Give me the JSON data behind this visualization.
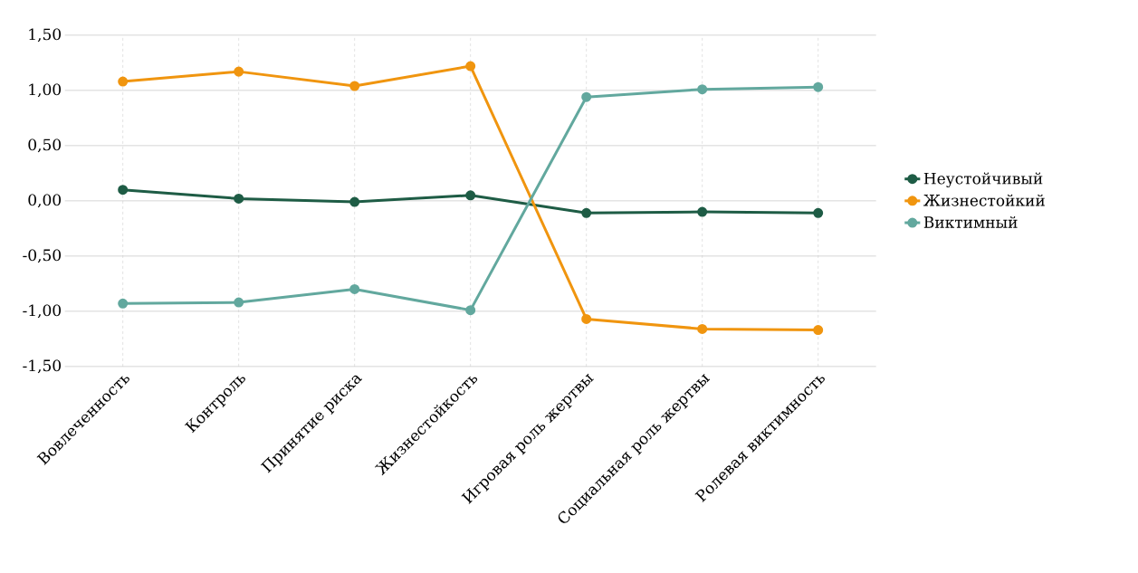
{
  "chart_data": {
    "type": "line",
    "categories": [
      "Вовлеченность",
      "Контроль",
      "Принятие риска",
      "Жизнестойкость",
      "Игровая роль жертвы",
      "Социальная роль жертвы",
      "Ролевая виктимность"
    ],
    "series": [
      {
        "name": "Неустойчивый",
        "color": "#1e5c45",
        "values": [
          0.1,
          0.02,
          -0.01,
          0.05,
          -0.11,
          -0.1,
          -0.11
        ]
      },
      {
        "name": "Жизнестойкий",
        "color": "#f0950f",
        "values": [
          1.08,
          1.17,
          1.04,
          1.22,
          -1.07,
          -1.16,
          -1.17
        ]
      },
      {
        "name": "Виктимный",
        "color": "#62a89e",
        "values": [
          -0.93,
          -0.92,
          -0.8,
          -0.99,
          0.94,
          1.01,
          1.03
        ]
      }
    ],
    "ylim": [
      -1.5,
      1.5
    ],
    "yticks": [
      {
        "value": -1.5,
        "label": "-1,50"
      },
      {
        "value": -1.0,
        "label": "-1,00"
      },
      {
        "value": -0.5,
        "label": "-0,50"
      },
      {
        "value": 0,
        "label": "0,00"
      },
      {
        "value": 0.5,
        "label": "0,50"
      },
      {
        "value": 1.0,
        "label": "1,00"
      },
      {
        "value": 1.5,
        "label": "1,50"
      }
    ],
    "grid": true,
    "legend": "right",
    "marker": "circle",
    "line_style": "solid"
  }
}
